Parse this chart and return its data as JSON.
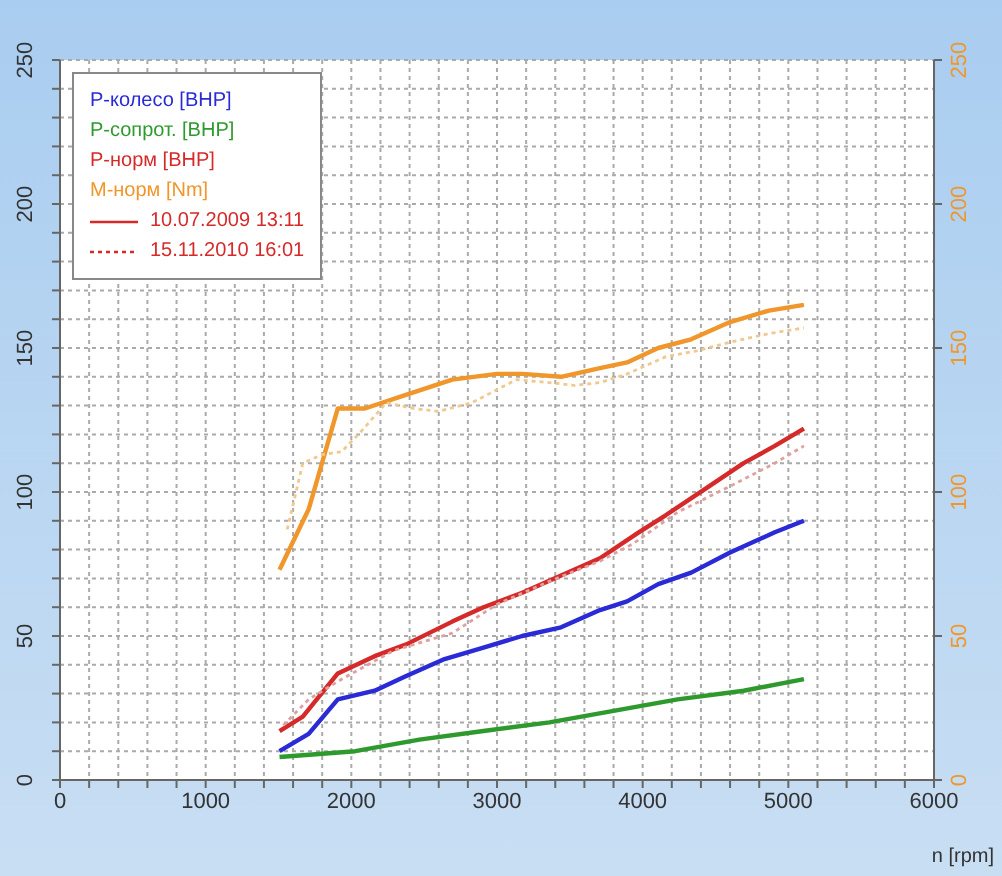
{
  "chart_data": {
    "type": "line",
    "xlabel": "n [rpm]",
    "xlim": [
      0,
      6000
    ],
    "xticks": [
      0,
      {
        "value": 200,
        "label": null
      },
      {
        "value": 400,
        "label": null
      },
      {
        "value": 600,
        "label": null
      },
      {
        "value": 800,
        "label": null
      },
      1000,
      {
        "value": 1200,
        "label": null
      },
      {
        "value": 1400,
        "label": null
      },
      {
        "value": 1600,
        "label": null
      },
      {
        "value": 1800,
        "label": null
      },
      2000,
      {
        "value": 2200,
        "label": null
      },
      {
        "value": 2400,
        "label": null
      },
      {
        "value": 2600,
        "label": null
      },
      {
        "value": 2800,
        "label": null
      },
      3000,
      {
        "value": 3200,
        "label": null
      },
      {
        "value": 3400,
        "label": null
      },
      {
        "value": 3600,
        "label": null
      },
      {
        "value": 3800,
        "label": null
      },
      4000,
      {
        "value": 4200,
        "label": null
      },
      {
        "value": 4400,
        "label": null
      },
      {
        "value": 4600,
        "label": null
      },
      {
        "value": 4800,
        "label": null
      },
      5000,
      {
        "value": 5200,
        "label": null
      },
      {
        "value": 5400,
        "label": null
      },
      {
        "value": 5600,
        "label": null
      },
      {
        "value": 5800,
        "label": null
      },
      6000
    ],
    "ylim": [
      0,
      250
    ],
    "yticks": [
      0,
      {
        "value": 10,
        "label": null
      },
      {
        "value": 20,
        "label": null
      },
      {
        "value": 30,
        "label": null
      },
      {
        "value": 40,
        "label": null
      },
      50,
      {
        "value": 60,
        "label": null
      },
      {
        "value": 70,
        "label": null
      },
      {
        "value": 80,
        "label": null
      },
      {
        "value": 90,
        "label": null
      },
      100,
      {
        "value": 110,
        "label": null
      },
      {
        "value": 120,
        "label": null
      },
      {
        "value": 130,
        "label": null
      },
      {
        "value": 140,
        "label": null
      },
      150,
      {
        "value": 160,
        "label": null
      },
      {
        "value": 170,
        "label": null
      },
      {
        "value": 180,
        "label": null
      },
      {
        "value": 190,
        "label": null
      },
      200,
      {
        "value": 210,
        "label": null
      },
      {
        "value": 220,
        "label": null
      },
      {
        "value": 230,
        "label": null
      },
      {
        "value": 240,
        "label": null
      },
      250
    ],
    "y2lim": [
      0,
      250
    ],
    "y2ticks": [
      0,
      50,
      100,
      150,
      200,
      250
    ],
    "grid": true,
    "legend": "top left",
    "marker": "none",
    "annotations": [
      "10.07.2009 13:11",
      "15.11.2010 16:01"
    ],
    "series": [
      {
        "name": "P-колесо [BHP]",
        "color": "#2a2ad6",
        "line_style": "solid",
        "x": [
          1507,
          1707,
          1907,
          2160,
          2373,
          2640,
          2907,
          3173,
          3440,
          3707,
          3893,
          4107,
          4333,
          4600,
          4907,
          5107
        ],
        "values": [
          10,
          16,
          28,
          31,
          36,
          42,
          46,
          50,
          53,
          59,
          62,
          68,
          72,
          79,
          86,
          90
        ]
      },
      {
        "name": "P-сопрот. [BHP]",
        "color": "#2e9a2e",
        "line_style": "solid",
        "x": [
          1507,
          2027,
          2467,
          2907,
          3360,
          3800,
          4240,
          4693,
          5107
        ],
        "values": [
          8,
          10,
          14,
          17,
          20,
          24,
          28,
          31,
          35
        ]
      },
      {
        "name": "P-норм [BHP]",
        "color": "#d62a2a",
        "line_style": "solid",
        "x": [
          1507,
          1667,
          1907,
          2160,
          2373,
          2693,
          2907,
          3173,
          3440,
          3707,
          3973,
          4160,
          4427,
          4693,
          4907,
          5107
        ],
        "values": [
          17,
          22,
          37,
          43,
          47,
          55,
          60,
          65,
          71,
          77,
          86,
          92,
          101,
          110,
          116,
          122
        ]
      },
      {
        "name": "M-норм [Nm]",
        "color": "#f0962a",
        "line_style": "solid",
        "axis": "y2",
        "x": [
          1507,
          1707,
          1907,
          2093,
          2333,
          2693,
          3000,
          3173,
          3440,
          3707,
          3893,
          4107,
          4333,
          4600,
          4867,
          5107
        ],
        "values": [
          73,
          94,
          129,
          129,
          133,
          139,
          141,
          141,
          140,
          143,
          145,
          150,
          153,
          159,
          163,
          165
        ]
      },
      {
        "color": "#e0a0a0",
        "line_style": "dotted",
        "x": [
          1533,
          1707,
          1933,
          2293,
          2693,
          3000,
          3360,
          3707,
          3933,
          4240,
          4600,
          4907,
          5107
        ],
        "values": [
          19,
          28,
          35,
          45,
          51,
          61,
          69,
          76,
          82,
          93,
          102,
          110,
          116
        ]
      },
      {
        "color": "#f0c890",
        "line_style": "dotted",
        "axis": "y2",
        "x": [
          1560,
          1667,
          1800,
          1933,
          2067,
          2240,
          2427,
          2600,
          2827,
          3133,
          3360,
          3533,
          3707,
          3893,
          4160,
          4373,
          4600,
          4867,
          5107
        ],
        "values": [
          87,
          110,
          113,
          114,
          121,
          131,
          129,
          128,
          131,
          139,
          138,
          137,
          138,
          141,
          147,
          149,
          152,
          155,
          157
        ]
      }
    ]
  }
}
